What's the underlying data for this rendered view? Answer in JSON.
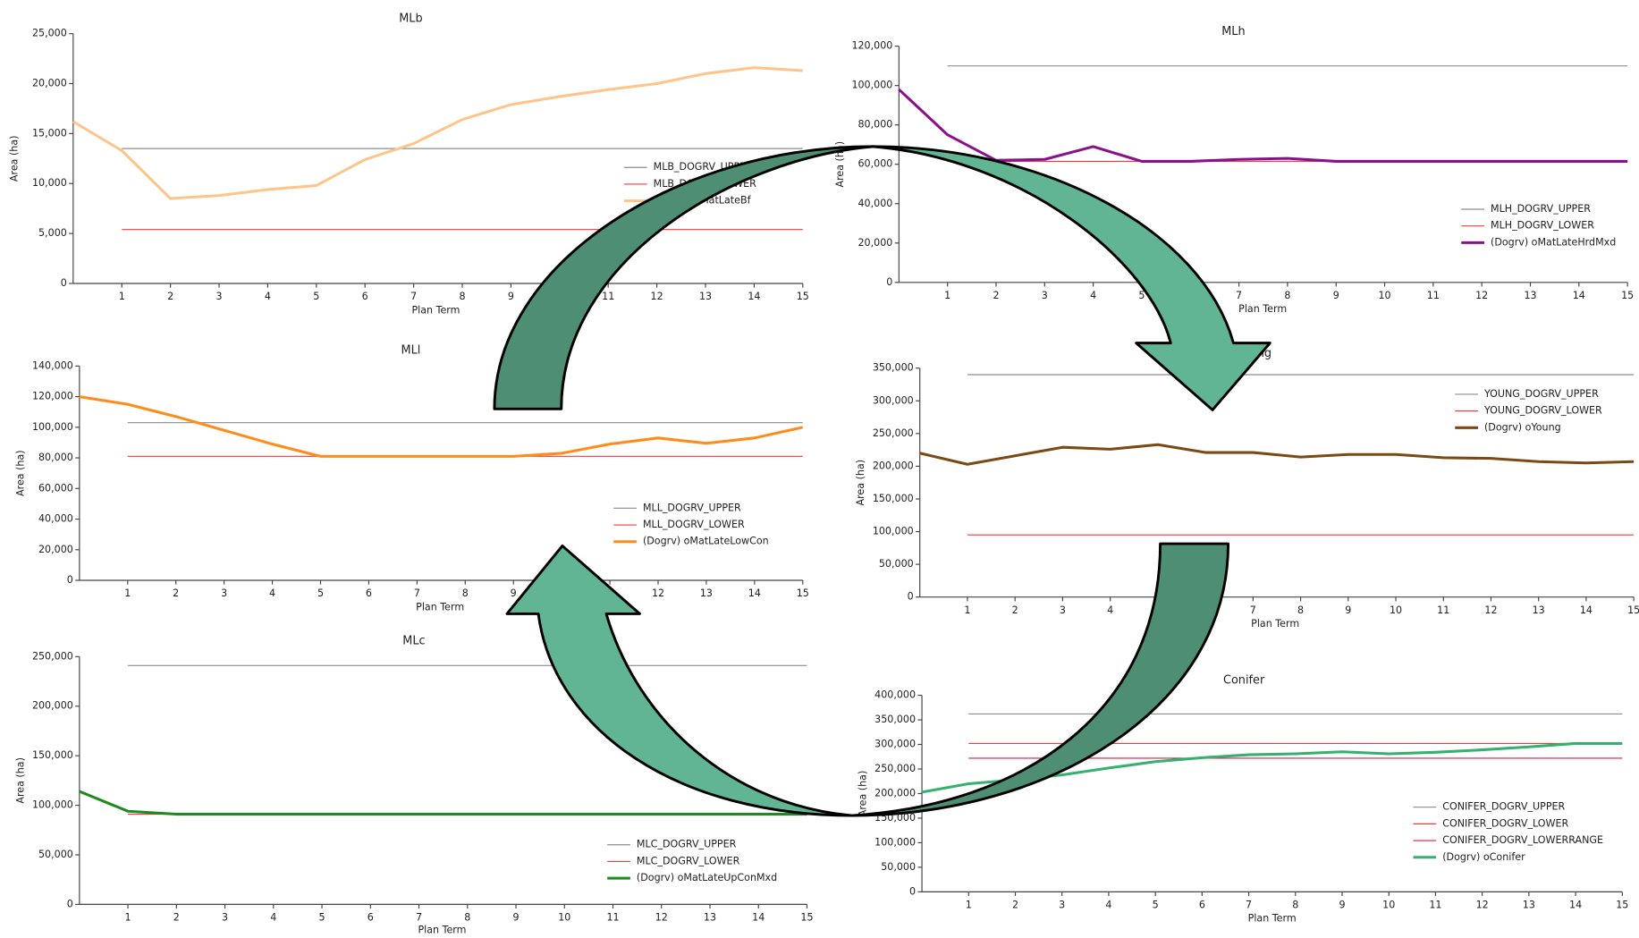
{
  "chart_data": [
    {
      "type": "line",
      "title": "MLb",
      "x_label": "Plan Term",
      "y_label": "Area (ha)",
      "x": [
        0,
        1,
        2,
        3,
        4,
        5,
        6,
        7,
        8,
        9,
        10,
        11,
        12,
        13,
        14,
        15
      ],
      "xlim": [
        0,
        15
      ],
      "xticks": [
        1,
        2,
        3,
        4,
        5,
        6,
        7,
        8,
        9,
        10,
        11,
        12,
        13,
        14,
        15
      ],
      "ylim": [
        0,
        25000
      ],
      "yticks": [
        0,
        {
          "value": 5000,
          "label": "5,000"
        },
        {
          "value": 10000,
          "label": "10,000"
        },
        {
          "value": 15000,
          "label": "15,000"
        },
        {
          "value": 20000,
          "label": "20,000"
        },
        {
          "value": 25000,
          "label": "25,000"
        }
      ],
      "series": [
        {
          "name": "MLB_DOGRV_UPPER",
          "color": "#8c8c8c",
          "values": [
            null,
            13500,
            13500,
            13500,
            13500,
            13500,
            13500,
            13500,
            13500,
            13500,
            13500,
            13500,
            13500,
            13500,
            13500,
            13500
          ]
        },
        {
          "name": "MLB_DOGRV_LOWER",
          "color": "#f03c3c",
          "values": [
            null,
            5400,
            5400,
            5400,
            5400,
            5400,
            5400,
            5400,
            5400,
            5400,
            5400,
            5400,
            5400,
            5400,
            5400,
            5400
          ]
        },
        {
          "name": "(Dogrv) oMatLateBf",
          "color": "#fdc58a",
          "values": [
            16200,
            13300,
            8500,
            8800,
            9400,
            9800,
            12400,
            14000,
            16400,
            17900,
            18700,
            19400,
            20000,
            21000,
            21600,
            21300
          ]
        }
      ]
    },
    {
      "type": "line",
      "title": "MLh",
      "x_label": "Plan Term",
      "y_label": "Area (ha)",
      "x": [
        0,
        1,
        2,
        3,
        4,
        5,
        6,
        7,
        8,
        9,
        10,
        11,
        12,
        13,
        14,
        15
      ],
      "xlim": [
        0,
        15
      ],
      "xticks": [
        1,
        2,
        3,
        4,
        5,
        6,
        7,
        8,
        9,
        10,
        11,
        12,
        13,
        14,
        15
      ],
      "ylim": [
        0,
        120000
      ],
      "yticks": [
        0,
        {
          "value": 20000,
          "label": "20,000"
        },
        {
          "value": 40000,
          "label": "40,000"
        },
        {
          "value": 60000,
          "label": "60,000"
        },
        {
          "value": 80000,
          "label": "80,000"
        },
        {
          "value": 100000,
          "label": "100,000"
        },
        {
          "value": 120000,
          "label": "120,000"
        }
      ],
      "series": [
        {
          "name": "MLH_DOGRV_UPPER",
          "color": "#8c8c8c",
          "values": [
            null,
            110000,
            110000,
            110000,
            110000,
            110000,
            110000,
            110000,
            110000,
            110000,
            110000,
            110000,
            110000,
            110000,
            110000,
            110000
          ]
        },
        {
          "name": "MLH_DOGRV_LOWER",
          "color": "#f03c3c",
          "values": [
            null,
            61500,
            61500,
            61500,
            61500,
            61500,
            61500,
            61500,
            61500,
            61500,
            61500,
            61500,
            61500,
            61500,
            61500,
            61500
          ]
        },
        {
          "name": "(Dogrv) oMatLateHrdMxd",
          "color": "#8b108b",
          "values": [
            98000,
            75000,
            62000,
            62500,
            69000,
            61500,
            61500,
            62500,
            63000,
            61500,
            61500,
            61500,
            61500,
            61500,
            61500,
            61500
          ]
        }
      ]
    },
    {
      "type": "line",
      "title": "MLl",
      "x_label": "Plan Term",
      "y_label": "Area (ha)",
      "x": [
        0,
        1,
        2,
        3,
        4,
        5,
        6,
        7,
        8,
        9,
        10,
        11,
        12,
        13,
        14,
        15
      ],
      "xlim": [
        0,
        15
      ],
      "xticks": [
        1,
        2,
        3,
        4,
        5,
        6,
        7,
        8,
        9,
        10,
        11,
        12,
        13,
        14,
        15
      ],
      "ylim": [
        0,
        140000
      ],
      "yticks": [
        0,
        {
          "value": 20000,
          "label": "20,000"
        },
        {
          "value": 40000,
          "label": "40,000"
        },
        {
          "value": 60000,
          "label": "60,000"
        },
        {
          "value": 80000,
          "label": "80,000"
        },
        {
          "value": 100000,
          "label": "100,000"
        },
        {
          "value": 120000,
          "label": "120,000"
        },
        {
          "value": 140000,
          "label": "140,000"
        }
      ],
      "series": [
        {
          "name": "MLL_DOGRV_UPPER",
          "color": "#8c8c8c",
          "values": [
            null,
            103000,
            103000,
            103000,
            103000,
            103000,
            103000,
            103000,
            103000,
            103000,
            103000,
            103000,
            103000,
            103000,
            103000,
            103000
          ]
        },
        {
          "name": "MLL_DOGRV_LOWER",
          "color": "#f03c3c",
          "values": [
            null,
            81000,
            81000,
            81000,
            81000,
            81000,
            81000,
            81000,
            81000,
            81000,
            81000,
            81000,
            81000,
            81000,
            81000,
            81000
          ]
        },
        {
          "name": "(Dogrv) oMatLateLowCon",
          "color": "#ff8c1a",
          "values": [
            120000,
            115000,
            107000,
            98000,
            89000,
            81000,
            81000,
            81000,
            81000,
            81000,
            83000,
            89000,
            93000,
            89500,
            93000,
            100000
          ]
        }
      ]
    },
    {
      "type": "line",
      "title": "Young",
      "x_label": "Plan Term",
      "y_label": "Area (ha)",
      "x": [
        0,
        1,
        2,
        3,
        4,
        5,
        6,
        7,
        8,
        9,
        10,
        11,
        12,
        13,
        14,
        15
      ],
      "xlim": [
        0,
        15
      ],
      "xticks": [
        1,
        2,
        3,
        4,
        5,
        6,
        7,
        8,
        9,
        10,
        11,
        12,
        13,
        14,
        15
      ],
      "ylim": [
        0,
        350000
      ],
      "yticks": [
        0,
        {
          "value": 50000,
          "label": "50,000"
        },
        {
          "value": 100000,
          "label": "100,000"
        },
        {
          "value": 150000,
          "label": "150,000"
        },
        {
          "value": 200000,
          "label": "200,000"
        },
        {
          "value": 250000,
          "label": "250,000"
        },
        {
          "value": 300000,
          "label": "300,000"
        },
        {
          "value": 350000,
          "label": "350,000"
        }
      ],
      "series": [
        {
          "name": "YOUNG_DOGRV_UPPER",
          "color": "#8c8c8c",
          "values": [
            null,
            340000,
            340000,
            340000,
            340000,
            340000,
            340000,
            340000,
            340000,
            340000,
            340000,
            340000,
            340000,
            340000,
            340000,
            340000
          ]
        },
        {
          "name": "YOUNG_DOGRV_LOWER",
          "color": "#f03c3c",
          "values": [
            null,
            95000,
            95000,
            95000,
            95000,
            95000,
            95000,
            95000,
            95000,
            95000,
            95000,
            95000,
            95000,
            95000,
            95000,
            95000
          ]
        },
        {
          "name": "(Dogrv) oYoung",
          "color": "#7b4a14",
          "values": [
            220000,
            203000,
            216000,
            229000,
            226000,
            233000,
            221000,
            221000,
            214000,
            218000,
            218000,
            213000,
            212000,
            207000,
            205000,
            207000
          ]
        }
      ]
    },
    {
      "type": "line",
      "title": "MLc",
      "x_label": "Plan Term",
      "y_label": "Area (ha)",
      "x": [
        0,
        1,
        2,
        3,
        4,
        5,
        6,
        7,
        8,
        9,
        10,
        11,
        12,
        13,
        14,
        15
      ],
      "xlim": [
        0,
        15
      ],
      "xticks": [
        1,
        2,
        3,
        4,
        5,
        6,
        7,
        8,
        9,
        10,
        11,
        12,
        13,
        14,
        15
      ],
      "ylim": [
        0,
        250000
      ],
      "yticks": [
        0,
        {
          "value": 50000,
          "label": "50,000"
        },
        {
          "value": 100000,
          "label": "100,000"
        },
        {
          "value": 150000,
          "label": "150,000"
        },
        {
          "value": 200000,
          "label": "200,000"
        },
        {
          "value": 250000,
          "label": "250,000"
        }
      ],
      "series": [
        {
          "name": "MLC_DOGRV_UPPER",
          "color": "#8c8c8c",
          "values": [
            null,
            241000,
            241000,
            241000,
            241000,
            241000,
            241000,
            241000,
            241000,
            241000,
            241000,
            241000,
            241000,
            241000,
            241000,
            241000
          ]
        },
        {
          "name": "MLC_DOGRV_LOWER",
          "color": "#f03c3c",
          "values": [
            null,
            91000,
            91000,
            91000,
            91000,
            91000,
            91000,
            91000,
            91000,
            91000,
            91000,
            91000,
            91000,
            91000,
            91000,
            91000
          ]
        },
        {
          "name": "(Dogrv) oMatLateUpConMxd",
          "color": "#1f8a1f",
          "values": [
            114000,
            94000,
            91000,
            91000,
            91000,
            91000,
            91000,
            91000,
            91000,
            91000,
            91000,
            91000,
            91000,
            91000,
            91000,
            91000
          ]
        }
      ]
    },
    {
      "type": "line",
      "title": "Conifer",
      "x_label": "Plan Term",
      "y_label": "Area (ha)",
      "x": [
        0,
        1,
        2,
        3,
        4,
        5,
        6,
        7,
        8,
        9,
        10,
        11,
        12,
        13,
        14,
        15
      ],
      "xlim": [
        0,
        15
      ],
      "xticks": [
        1,
        2,
        3,
        4,
        5,
        6,
        7,
        8,
        9,
        10,
        11,
        12,
        13,
        14,
        15
      ],
      "ylim": [
        0,
        400000
      ],
      "yticks": [
        0,
        {
          "value": 50000,
          "label": "50,000"
        },
        {
          "value": 100000,
          "label": "100,000"
        },
        {
          "value": 150000,
          "label": "150,000"
        },
        {
          "value": 200000,
          "label": "200,000"
        },
        {
          "value": 250000,
          "label": "250,000"
        },
        {
          "value": 300000,
          "label": "300,000"
        },
        {
          "value": 350000,
          "label": "350,000"
        },
        {
          "value": 400000,
          "label": "400,000"
        }
      ],
      "series": [
        {
          "name": "CONIFER_DOGRV_UPPER",
          "color": "#8c8c8c",
          "values": [
            null,
            362000,
            362000,
            362000,
            362000,
            362000,
            362000,
            362000,
            362000,
            362000,
            362000,
            362000,
            362000,
            362000,
            362000,
            362000
          ]
        },
        {
          "name": "CONIFER_DOGRV_LOWER",
          "color": "#f03c3c",
          "values": [
            null,
            302000,
            302000,
            302000,
            302000,
            302000,
            302000,
            302000,
            302000,
            302000,
            302000,
            302000,
            302000,
            302000,
            302000,
            302000
          ]
        },
        {
          "name": "CONIFER_DOGRV_LOWERRANGE",
          "color": "#d21e4b",
          "values": [
            null,
            272000,
            272000,
            272000,
            272000,
            272000,
            272000,
            272000,
            272000,
            272000,
            272000,
            272000,
            272000,
            272000,
            272000,
            272000
          ]
        },
        {
          "name": "(Dogrv) oConifer",
          "color": "#36b06e",
          "values": [
            203000,
            220000,
            228000,
            238000,
            252000,
            265000,
            273000,
            279000,
            281000,
            285000,
            281000,
            284000,
            289000,
            295000,
            302000,
            302000
          ]
        }
      ]
    }
  ]
}
